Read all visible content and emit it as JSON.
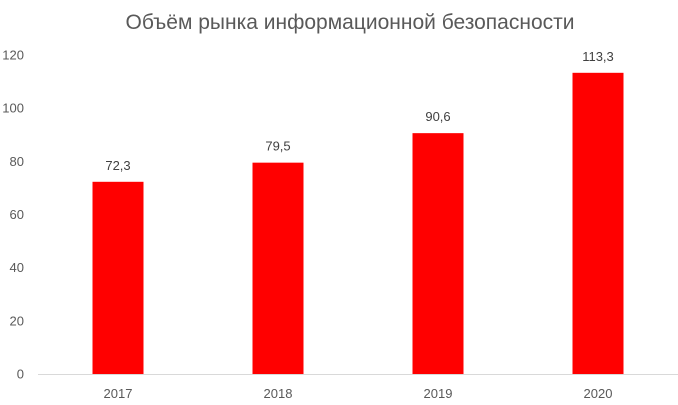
{
  "chart_data": {
    "type": "bar",
    "title": "Объём рынка информационной безопасности",
    "xlabel": "",
    "ylabel": "",
    "categories": [
      "2017",
      "2018",
      "2019",
      "2020"
    ],
    "values": [
      72.3,
      79.5,
      90.6,
      113.3
    ],
    "data_labels": [
      "72,3",
      "79,5",
      "90,6",
      "113,3"
    ],
    "ylim": [
      0,
      120
    ],
    "yticks": [
      0,
      20,
      40,
      60,
      80,
      100,
      120
    ],
    "grid": false,
    "legend": "none",
    "colors": {
      "bar": "#FF0000",
      "axis": "#D9D9D9",
      "text": "#595959"
    }
  }
}
